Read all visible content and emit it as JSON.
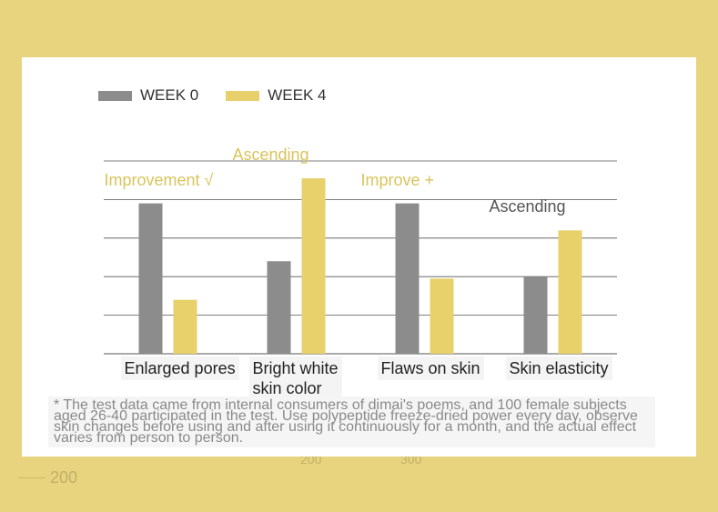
{
  "colors": {
    "week0": "#8c8c8c",
    "week4": "#e8d16b",
    "background": "#e8d47e",
    "annotation": "#d9c45c",
    "grid": "#555555"
  },
  "background_text": [
    "200",
    "200",
    "300"
  ],
  "chart_data": {
    "type": "bar",
    "categories": [
      "Enlarged pores",
      "Bright white\nskin color",
      "Flaws on skin",
      "Skin elasticity"
    ],
    "series": [
      {
        "name": "WEEK 0",
        "values": [
          3.9,
          2.4,
          3.9,
          2.0
        ]
      },
      {
        "name": "WEEK 4",
        "values": [
          1.4,
          4.55,
          1.95,
          3.2
        ]
      }
    ],
    "ylim": [
      0,
      5
    ],
    "grid": true,
    "legend_position": "top-left",
    "annotations": [
      {
        "text": "Improvement √",
        "category_index": 0,
        "color": "#d9c45c"
      },
      {
        "text": "Ascending",
        "category_index": 1,
        "color": "#d9c45c"
      },
      {
        "text": "Improve +",
        "category_index": 2,
        "color": "#d9c45c"
      },
      {
        "text": "Ascending",
        "category_index": 3,
        "color": "#555555"
      }
    ],
    "footnote": "* The test data came from internal consumers of dimai's poems, and 100 female subjects aged 26-40 participated in the test. Use polypeptide freeze-dried power every day, observe skin changes before using and after using it continuously for a month, and the actual effect varies from person to person."
  }
}
